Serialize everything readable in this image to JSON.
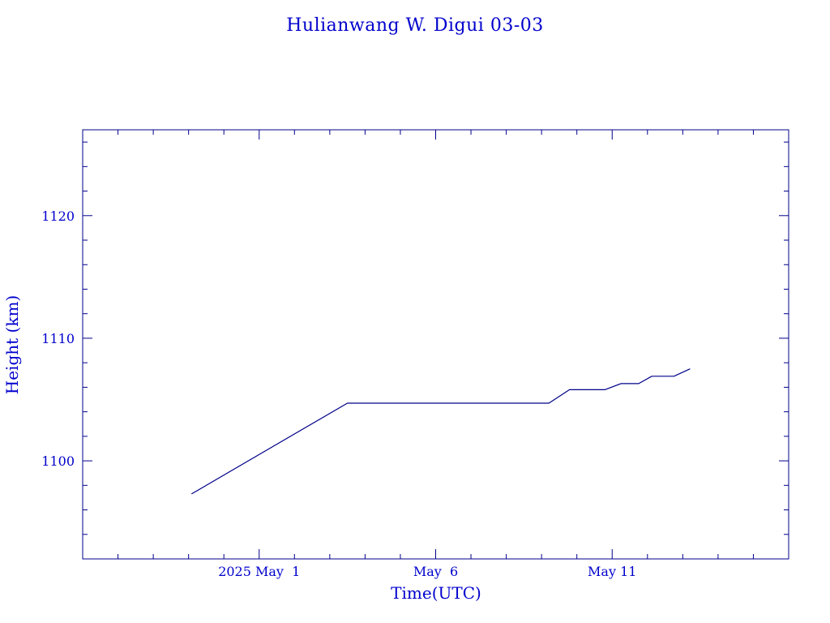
{
  "chart_data": {
    "type": "line",
    "title": "Hulianwang W. Digui 03-03",
    "xlabel": "Time(UTC)",
    "ylabel": "Height (km)",
    "x_axis": {
      "type": "time",
      "range": [
        "2025-04-26T00:00",
        "2025-05-16T00:00"
      ],
      "tick_labels": [
        {
          "date": "2025-05-01",
          "label": "2025 May  1"
        },
        {
          "date": "2025-05-06",
          "label": "May  6"
        },
        {
          "date": "2025-05-11",
          "label": "May 11"
        }
      ]
    },
    "y_axis": {
      "range": [
        1092,
        1127
      ],
      "tick_labels": [
        {
          "value": 1100,
          "label": "1100"
        },
        {
          "value": 1110,
          "label": "1110"
        },
        {
          "value": 1120,
          "label": "1120"
        }
      ]
    },
    "series": [
      {
        "x": [
          "2025-04-29T02:00",
          "2025-05-03T12:00",
          "2025-05-09T05:00",
          "2025-05-09T19:00",
          "2025-05-10T19:00",
          "2025-05-11T06:00",
          "2025-05-11T18:00",
          "2025-05-12T03:00",
          "2025-05-12T18:00",
          "2025-05-13T05:00"
        ],
        "y": [
          1097.3,
          1104.7,
          1104.7,
          1105.8,
          1105.8,
          1106.3,
          1106.3,
          1106.9,
          1106.9,
          1107.5
        ]
      }
    ],
    "colors": {
      "line": "#00008b",
      "text": "#0000cd"
    },
    "grid": false,
    "legend": "none"
  }
}
